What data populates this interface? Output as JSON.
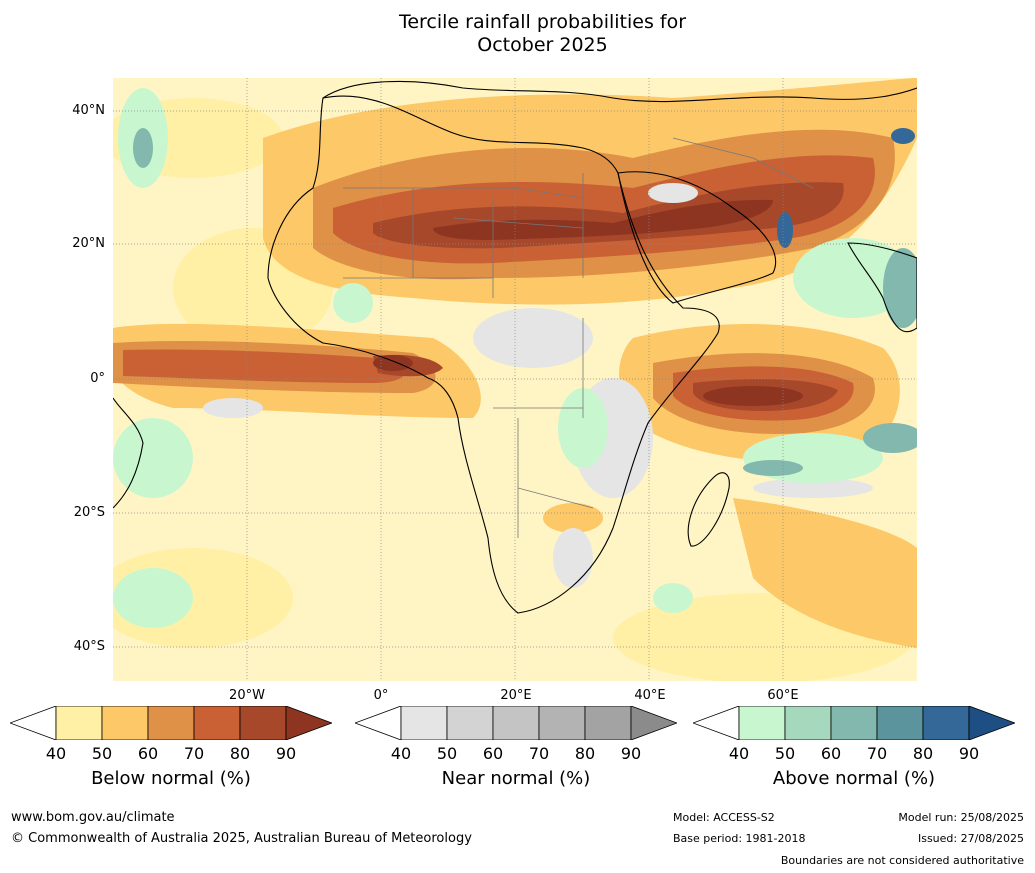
{
  "title": {
    "line1": "Tercile rainfall probabilities for",
    "line2": "October 2025"
  },
  "lat_labels": [
    "40°N",
    "20°N",
    "0°",
    "20°S",
    "40°S"
  ],
  "lon_labels": [
    "20°W",
    "0°",
    "20°E",
    "40°E",
    "60°E"
  ],
  "colorbars": [
    {
      "name": "below",
      "title": "Below normal (%)",
      "ticks": [
        "40",
        "50",
        "60",
        "70",
        "80",
        "90"
      ],
      "colors": [
        "#fff0a5",
        "#fdc867",
        "#de9147",
        "#c96134",
        "#a8482b",
        "#8e3521"
      ]
    },
    {
      "name": "near",
      "title": "Near normal (%)",
      "ticks": [
        "40",
        "50",
        "60",
        "70",
        "80",
        "90"
      ],
      "colors": [
        "#e5e5e5",
        "#d3d3d3",
        "#c4c4c4",
        "#b3b3b3",
        "#a3a3a3",
        "#8b8b8b"
      ]
    },
    {
      "name": "above",
      "title": "Above normal (%)",
      "ticks": [
        "40",
        "50",
        "60",
        "70",
        "80",
        "90"
      ],
      "colors": [
        "#c8f7cf",
        "#a5d8bd",
        "#82b8ad",
        "#5b949d",
        "#336898",
        "#1e4f84"
      ]
    }
  ],
  "footer": {
    "url": "www.bom.gov.au/climate",
    "copyright": "© Commonwealth of Australia 2025, Australian Bureau of Meteorology",
    "model": "Model: ACCESS-S2",
    "base_period": "Base period: 1981-2018",
    "model_run": "Model run: 25/08/2025",
    "issued": "Issued: 27/08/2025",
    "disclaimer": "Boundaries are not considered authoritative"
  }
}
